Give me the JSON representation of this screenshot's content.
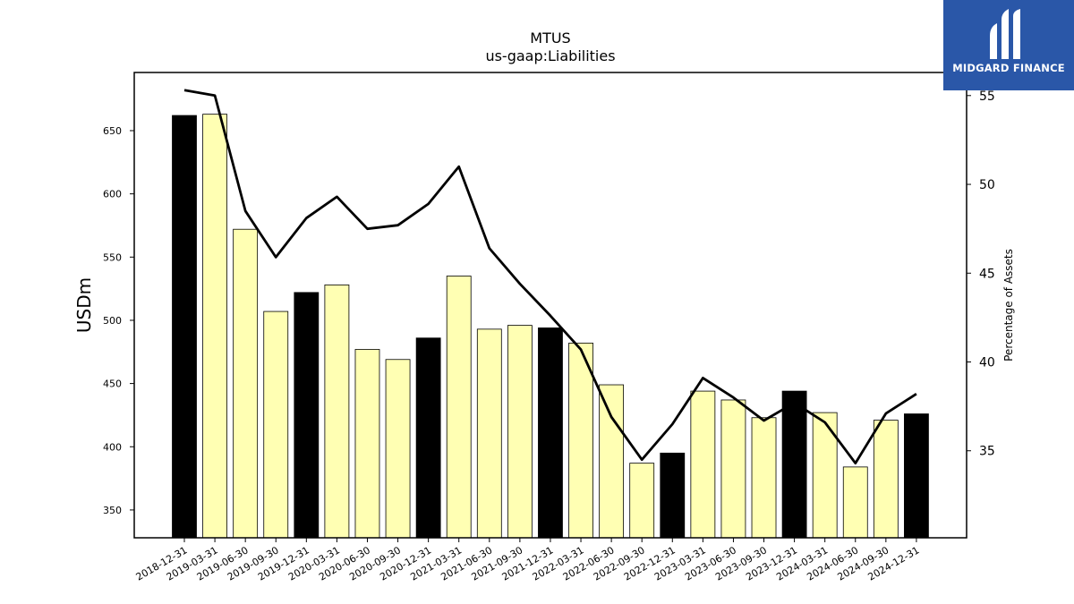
{
  "brand": {
    "name": "MIDGARD FINANCE",
    "color": "#2a57a8"
  },
  "chart_data": {
    "type": "bar",
    "title": "MTUS",
    "subtitle": "us-gaap:Liabilities",
    "ylabel": "USDm",
    "y2label": "Percentage of Assets",
    "ylim": [
      328,
      696
    ],
    "y2lim": [
      30.1,
      56.3
    ],
    "yticks": [
      350,
      400,
      450,
      500,
      550,
      600,
      650
    ],
    "y2ticks": [
      35,
      40,
      45,
      50,
      55
    ],
    "categories": [
      "2018-12-31",
      "2019-03-31",
      "2019-06-30",
      "2019-09-30",
      "2019-12-31",
      "2020-03-31",
      "2020-06-30",
      "2020-09-30",
      "2020-12-31",
      "2021-03-31",
      "2021-06-30",
      "2021-09-30",
      "2021-12-31",
      "2022-03-31",
      "2022-06-30",
      "2022-09-30",
      "2022-12-31",
      "2023-03-31",
      "2023-06-30",
      "2023-09-30",
      "2023-12-31",
      "2024-03-31",
      "2024-06-30",
      "2024-09-30",
      "2024-12-31"
    ],
    "series": [
      {
        "type": "bar",
        "values": [
          662,
          663,
          572,
          507,
          522,
          528,
          477,
          469,
          486,
          535,
          493,
          496,
          494,
          482,
          449,
          387,
          395,
          444,
          437,
          423,
          444,
          427,
          384,
          421,
          426
        ],
        "colors": {
          "year_end": "#000000",
          "quarter": "#ffffb3"
        }
      },
      {
        "type": "line",
        "axis": "right",
        "values": [
          55.3,
          55.0,
          48.5,
          45.9,
          48.1,
          49.3,
          47.5,
          47.7,
          48.9,
          51.0,
          46.4,
          44.4,
          42.6,
          40.7,
          36.9,
          34.5,
          36.5,
          39.1,
          38.0,
          36.7,
          37.7,
          36.6,
          34.3,
          37.1,
          38.2
        ],
        "color": "#000000"
      }
    ]
  }
}
